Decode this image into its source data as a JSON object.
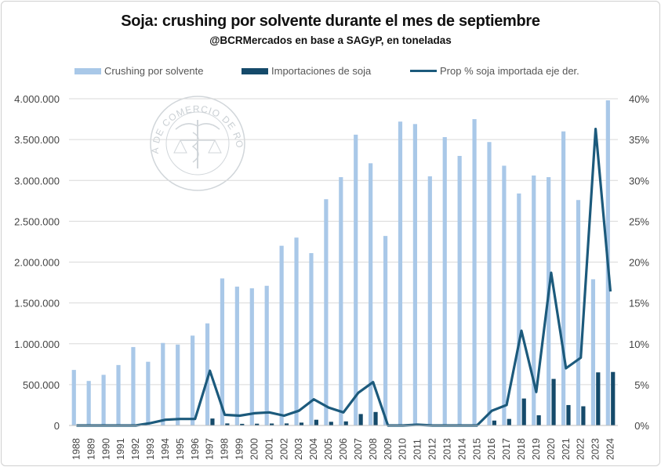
{
  "chart_data": {
    "type": "bar",
    "title": "Soja: crushing por solvente durante el mes de septiembre",
    "subtitle": "@BCRMercados en base a SAGyP, en toneladas",
    "categories": [
      "1988",
      "1989",
      "1990",
      "1991",
      "1992",
      "1993",
      "1994",
      "1995",
      "1996",
      "1997",
      "1998",
      "1999",
      "2000",
      "2001",
      "2002",
      "2003",
      "2004",
      "2005",
      "2006",
      "2007",
      "2008",
      "2009",
      "2010",
      "2011",
      "2012",
      "2013",
      "2014",
      "2015",
      "2016",
      "2017",
      "2018",
      "2019",
      "2020",
      "2021",
      "2022",
      "2023",
      "2024"
    ],
    "series": [
      {
        "name": "Crushing por solvente",
        "kind": "bar",
        "axis": "left",
        "color": "#a9c8e8",
        "values": [
          680000,
          545000,
          620000,
          740000,
          960000,
          780000,
          1010000,
          990000,
          1100000,
          1250000,
          1800000,
          1700000,
          1680000,
          1710000,
          2200000,
          2300000,
          2110000,
          2770000,
          3040000,
          3560000,
          3210000,
          2320000,
          3720000,
          3690000,
          3050000,
          3530000,
          3300000,
          3750000,
          3470000,
          3180000,
          2840000,
          3060000,
          3040000,
          3600000,
          2760000,
          1790000,
          3980000
        ]
      },
      {
        "name": "Importaciones de soja",
        "kind": "bar",
        "axis": "left",
        "color": "#154a6a",
        "values": [
          0,
          0,
          0,
          0,
          0,
          0,
          0,
          0,
          0,
          85000,
          25000,
          20000,
          22000,
          24000,
          25000,
          35000,
          70000,
          45000,
          50000,
          140000,
          165000,
          0,
          0,
          0,
          0,
          0,
          0,
          0,
          60000,
          80000,
          330000,
          125000,
          570000,
          250000,
          235000,
          650000,
          655000
        ]
      },
      {
        "name": "Prop % soja importada eje der.",
        "kind": "line",
        "axis": "right",
        "color": "#1c5a7c",
        "values": [
          0,
          0,
          0,
          0,
          0,
          0.3,
          0.7,
          0.8,
          0.8,
          6.7,
          1.3,
          1.2,
          1.5,
          1.6,
          1.2,
          1.8,
          3.2,
          2.2,
          1.6,
          4.0,
          5.3,
          0,
          0,
          0.1,
          0,
          0,
          0,
          0,
          1.8,
          2.5,
          11.6,
          4.1,
          18.7,
          7.0,
          8.3,
          36.3,
          16.4
        ]
      }
    ],
    "yaxis_left": {
      "min": 0,
      "max": 4000000,
      "ticks": [
        "0",
        "500.000",
        "1.000.000",
        "1.500.000",
        "2.000.000",
        "2.500.000",
        "3.000.000",
        "3.500.000",
        "4.000.000"
      ]
    },
    "yaxis_right": {
      "min": 0,
      "max": 40,
      "ticks": [
        "0%",
        "5%",
        "10%",
        "15%",
        "20%",
        "25%",
        "30%",
        "35%",
        "40%"
      ]
    },
    "grid": true,
    "legend_position": "top"
  },
  "watermark": {
    "text": "BOLSA DE COMERCIO DE ROSARIO"
  }
}
